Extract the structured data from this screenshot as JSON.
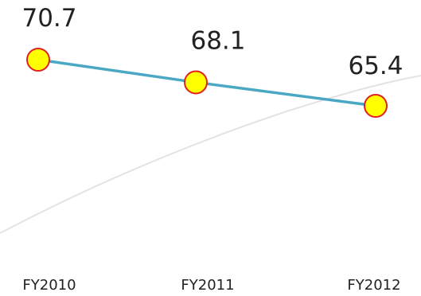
{
  "chart_data": {
    "type": "line",
    "categories": [
      "FY2010",
      "FY2011",
      "FY2012"
    ],
    "values": [
      70.7,
      68.1,
      65.4
    ],
    "data_labels": [
      "70.7",
      "68.1",
      "65.4"
    ],
    "ylim": [
      40,
      75
    ],
    "grid": false,
    "colors": {
      "line": "#4aa8c4",
      "marker_fill": "#ffff00",
      "marker_stroke": "#e02020",
      "background_curve": "#d9d9d9",
      "text": "#222222"
    }
  }
}
